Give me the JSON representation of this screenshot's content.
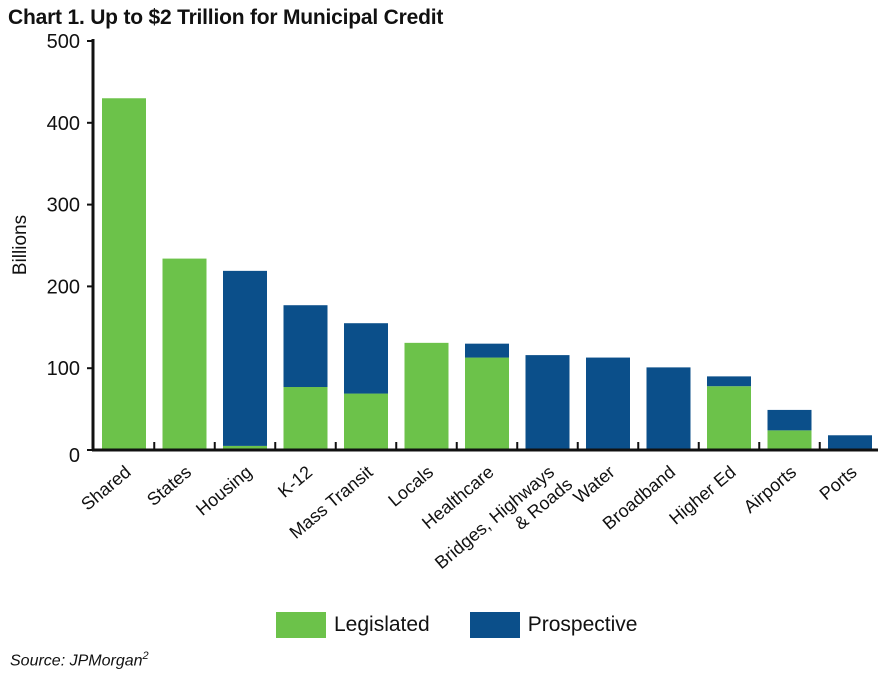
{
  "title": "Chart 1. Up to $2 Trillion for Municipal Credit",
  "source": {
    "text": "Source: JPMorgan",
    "footnote": "2"
  },
  "colors": {
    "legislated": "#6cc24a",
    "prospective": "#0b4f8a",
    "axis": "#111111"
  },
  "legend": [
    {
      "key": "legislated",
      "label": "Legislated"
    },
    {
      "key": "prospective",
      "label": "Prospective"
    }
  ],
  "chart_data": {
    "type": "bar",
    "stacked": true,
    "title": "Chart 1. Up to $2 Trillion for Municipal Credit",
    "xlabel": "",
    "ylabel": "Billions",
    "ylim": [
      0,
      500
    ],
    "yticks": [
      0,
      100,
      200,
      300,
      400,
      500
    ],
    "categories": [
      "Shared",
      "States",
      "Housing",
      "K-12",
      "Mass Transit",
      "Locals",
      "Healthcare",
      "Bridges, Highways & Roads",
      "Water",
      "Broadband",
      "Higher Ed",
      "Airports",
      "Ports"
    ],
    "category_lines": [
      [
        "Shared"
      ],
      [
        "States"
      ],
      [
        "Housing"
      ],
      [
        "K-12"
      ],
      [
        "Mass Transit"
      ],
      [
        "Locals"
      ],
      [
        "Healthcare"
      ],
      [
        "Bridges, Highways",
        "& Roads"
      ],
      [
        "Water"
      ],
      [
        "Broadband"
      ],
      [
        "Higher Ed"
      ],
      [
        "Airports"
      ],
      [
        "Ports"
      ]
    ],
    "series": [
      {
        "name": "Legislated",
        "key": "legislated",
        "values": [
          430,
          234,
          5,
          77,
          69,
          131,
          113,
          1,
          1,
          1,
          78,
          24,
          1
        ]
      },
      {
        "name": "Prospective",
        "key": "prospective",
        "values": [
          0,
          0,
          214,
          100,
          86,
          0,
          17,
          115,
          112,
          100,
          12,
          25,
          17
        ]
      }
    ],
    "legend_position": "bottom-center",
    "grid": false
  }
}
